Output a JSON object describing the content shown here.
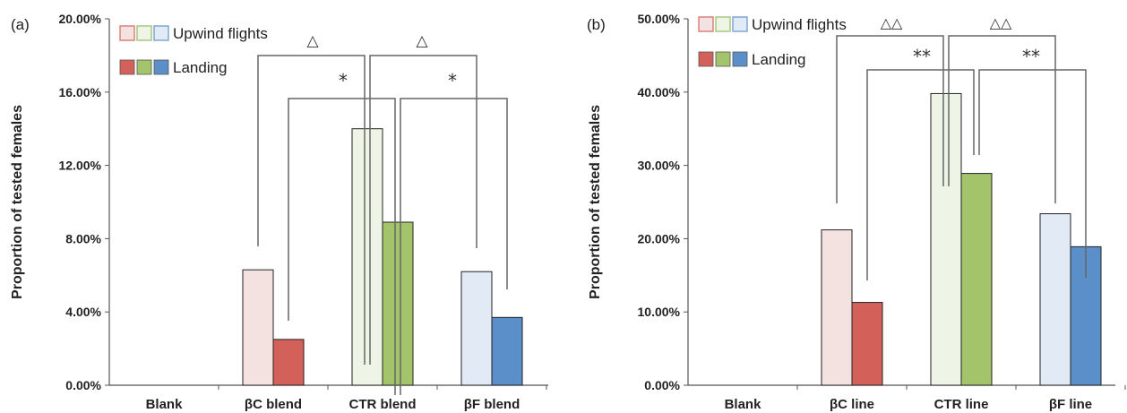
{
  "colors": {
    "upwind": [
      "#f4e2e0",
      "#eef4e6",
      "#e2ebf5"
    ],
    "landing": [
      "#d4605a",
      "#a3c46b",
      "#5b8fc9"
    ],
    "legend_outline": [
      "#d9837c",
      "#a8c87b",
      "#7ea8d6"
    ],
    "axis": "#555555",
    "bracket": "#666666"
  },
  "legend": {
    "upwind": "Upwind flights",
    "landing": "Landing",
    "placement": "top-left"
  },
  "chart_data": [
    {
      "type": "bar",
      "panel_label": "(a)",
      "ylabel": "Proportion of tested females",
      "categories": [
        "Blank",
        "βC blend",
        "CTR blend",
        "βF blend"
      ],
      "ylim": [
        0,
        0.2
      ],
      "yticks": [
        "0.00%",
        "4.00%",
        "8.00%",
        "12.00%",
        "16.00%",
        "20.00%"
      ],
      "series": [
        {
          "name": "Upwind flights",
          "values": [
            0,
            0.063,
            0.14,
            0.062
          ]
        },
        {
          "name": "Landing",
          "values": [
            0,
            0.025,
            0.089,
            0.037
          ]
        }
      ],
      "annotations": [
        {
          "label": "△",
          "series": 0,
          "between": [
            1,
            3
          ],
          "center": 2
        },
        {
          "label": "*",
          "series": 1,
          "between": [
            1,
            3
          ],
          "center": 2
        }
      ]
    },
    {
      "type": "bar",
      "panel_label": "(b)",
      "ylabel": "Proportion of tested females",
      "categories": [
        "Blank",
        "βC line",
        "CTR line",
        "βF line"
      ],
      "ylim": [
        0,
        0.5
      ],
      "yticks": [
        "0.00%",
        "10.00%",
        "20.00%",
        "30.00%",
        "40.00%",
        "50.00%"
      ],
      "series": [
        {
          "name": "Upwind flights",
          "values": [
            0,
            0.212,
            0.398,
            0.234
          ]
        },
        {
          "name": "Landing",
          "values": [
            0,
            0.113,
            0.289,
            0.189
          ]
        }
      ],
      "annotations": [
        {
          "label": "△△",
          "series": 0,
          "between": [
            1,
            3
          ],
          "center": 2
        },
        {
          "label": "**",
          "series": 1,
          "between": [
            1,
            3
          ],
          "center": 2
        }
      ]
    }
  ]
}
